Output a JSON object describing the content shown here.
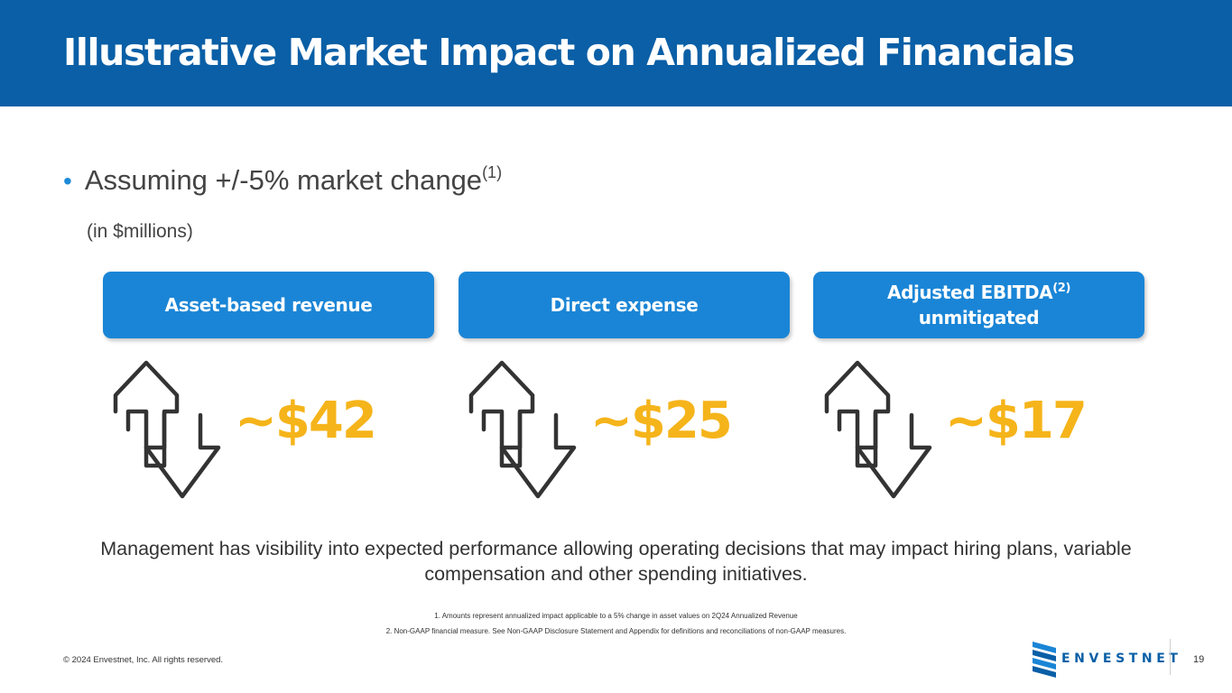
{
  "header": {
    "title": "Illustrative Market Impact on Annualized Financials"
  },
  "bullet": {
    "marker": "•",
    "text": "Assuming +/-5% market change",
    "superscript": "(1)"
  },
  "units_note": "(in $millions)",
  "metrics": [
    {
      "label": "Asset-based revenue",
      "value": "~$42"
    },
    {
      "label": "Direct expense",
      "value": "~$25"
    },
    {
      "label_line1": "Adjusted EBITDA",
      "superscript": "(2)",
      "label_line2": "unmitigated",
      "value": "~$17"
    }
  ],
  "management_note": "Management has visibility into expected performance allowing operating decisions that may impact hiring plans, variable compensation and other spending initiatives.",
  "footnotes": [
    "1. Amounts represent annualized impact applicable to a 5% change in asset values on 2Q24 Annualized Revenue",
    "2. Non-GAAP financial measure. See Non-GAAP Disclosure Statement and Appendix for definitions and reconciliations of non-GAAP measures."
  ],
  "footer": {
    "copyright": "© 2024 Envestnet, Inc. All rights reserved.",
    "brand": "ENVESTNET",
    "page_number": "19"
  },
  "colors": {
    "header_bg": "#0a5fa6",
    "pill_bg": "#1a85d6",
    "value_text": "#f5b41a",
    "bullet": "#1d8ad8"
  },
  "icons": {
    "arrows": "up-down-arrows-icon",
    "logo": "envestnet-logo-icon"
  }
}
